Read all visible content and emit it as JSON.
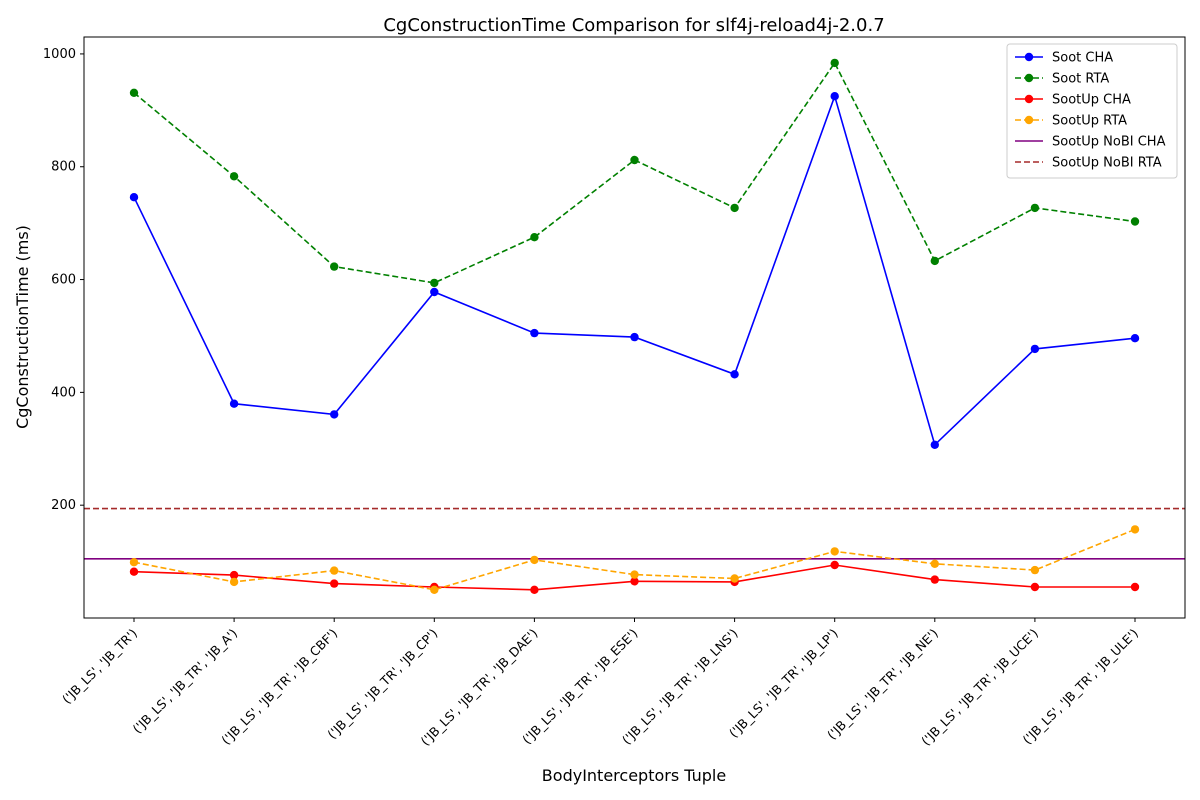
{
  "chart_data": {
    "type": "line",
    "title": "CgConstructionTime Comparison for slf4j-reload4j-2.0.7",
    "xlabel": "BodyInterceptors Tuple",
    "ylabel": "CgConstructionTime (ms)",
    "ylim": [
      0,
      1030
    ],
    "yticks": [
      200,
      400,
      600,
      800,
      1000
    ],
    "grid": false,
    "legend_position": "top-right",
    "categories": [
      "('JB_LS', 'JB_TR')",
      "('JB_LS', 'JB_TR', 'JB_A')",
      "('JB_LS', 'JB_TR', 'JB_CBF')",
      "('JB_LS', 'JB_TR', 'JB_CP')",
      "('JB_LS', 'JB_TR', 'JB_DAE')",
      "('JB_LS', 'JB_TR', 'JB_ESE')",
      "('JB_LS', 'JB_TR', 'JB_LNS')",
      "('JB_LS', 'JB_TR', 'JB_LP')",
      "('JB_LS', 'JB_TR', 'JB_NE')",
      "('JB_LS', 'JB_TR', 'JB_UCE')",
      "('JB_LS', 'JB_TR', 'JB_ULE')"
    ],
    "series": [
      {
        "name": "Soot CHA",
        "color": "#0000ff",
        "style": "solid",
        "marker": true,
        "values": [
          746,
          380,
          361,
          578,
          505,
          498,
          432,
          925,
          307,
          477,
          496
        ]
      },
      {
        "name": "Soot RTA",
        "color": "#008000",
        "style": "dashed",
        "marker": true,
        "values": [
          931,
          783,
          623,
          594,
          675,
          812,
          727,
          984,
          633,
          727,
          703
        ]
      },
      {
        "name": "SootUp CHA",
        "color": "#ff0000",
        "style": "solid",
        "marker": true,
        "values": [
          82,
          76,
          61,
          55,
          50,
          65,
          64,
          94,
          68,
          55,
          55
        ]
      },
      {
        "name": "SootUp RTA",
        "color": "#ffa500",
        "style": "dashed",
        "marker": true,
        "values": [
          99,
          64,
          84,
          50,
          103,
          77,
          70,
          118,
          96,
          85,
          157
        ]
      }
    ],
    "hlines": [
      {
        "name": "SootUp NoBI CHA",
        "color": "#800080",
        "style": "solid",
        "value": 105
      },
      {
        "name": "SootUp NoBI RTA",
        "color": "#a52a2a",
        "style": "dashed",
        "value": 194
      }
    ]
  }
}
